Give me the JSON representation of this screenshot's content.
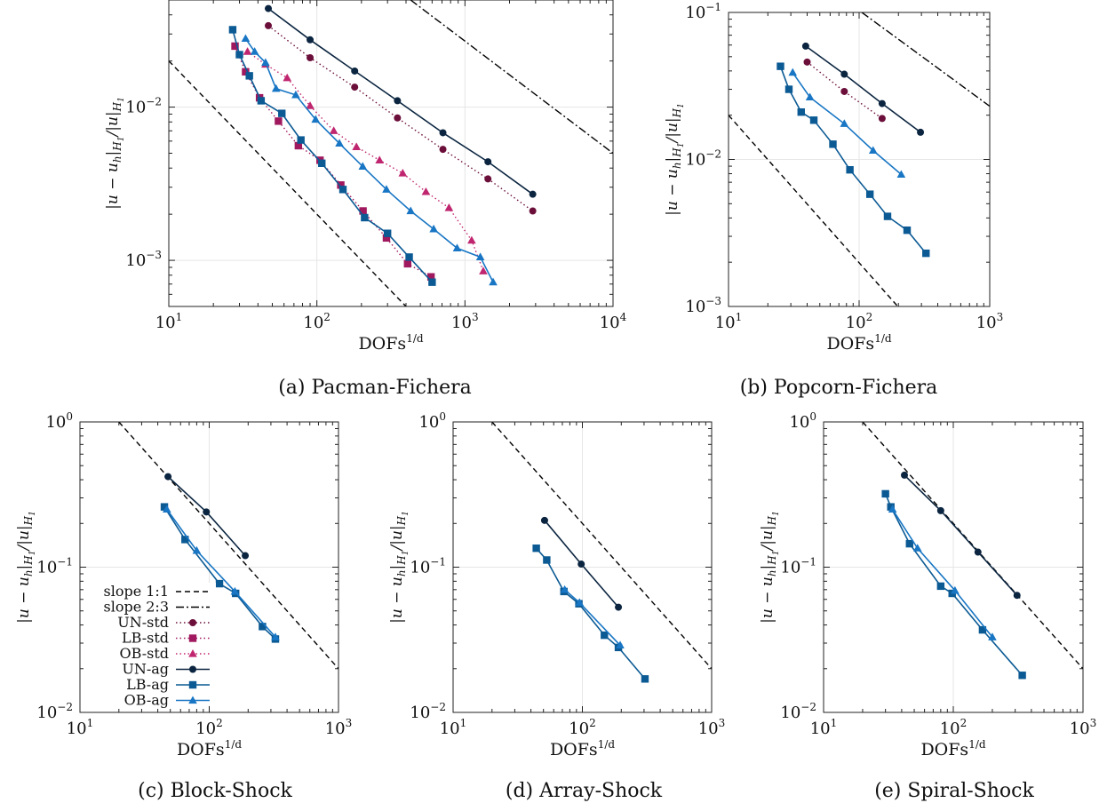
{
  "colors": {
    "UN": "#0b2540",
    "LB": "#0b5a94",
    "OB": "#1876c4",
    "UNstd": "#6b0f3a",
    "LBstd": "#a0185e",
    "OBstd": "#c0266f",
    "ref": "#000000"
  },
  "legend": {
    "entries": [
      {
        "label": "slope 1:1",
        "style": "dash",
        "marker": "none",
        "color": "#000000"
      },
      {
        "label": "slope 2:3",
        "style": "dashdot",
        "marker": "none",
        "color": "#000000"
      },
      {
        "label": "UN-std",
        "style": "dot",
        "marker": "circle",
        "color": "#6b0f3a"
      },
      {
        "label": "LB-std",
        "style": "dot",
        "marker": "square",
        "color": "#a0185e"
      },
      {
        "label": "OB-std",
        "style": "dot",
        "marker": "triangle",
        "color": "#c0266f"
      },
      {
        "label": "UN-ag",
        "style": "solid",
        "marker": "circle",
        "color": "#0b2540"
      },
      {
        "label": "LB-ag",
        "style": "solid",
        "marker": "square",
        "color": "#0b5a94"
      },
      {
        "label": "OB-ag",
        "style": "solid",
        "marker": "triangle",
        "color": "#1876c4"
      }
    ]
  },
  "chart_data": [
    {
      "type": "line",
      "caption": "(a) Pacman-Fichera",
      "xscale": "log",
      "yscale": "log",
      "xlim": [
        10,
        10000
      ],
      "ylim": [
        0.0005,
        0.05
      ],
      "xticks": [
        {
          "v": 10,
          "base": "10",
          "exp": "1"
        },
        {
          "v": 100,
          "base": "10",
          "exp": "2"
        },
        {
          "v": 1000,
          "base": "10",
          "exp": "3"
        },
        {
          "v": 10000,
          "base": "10",
          "exp": "4"
        }
      ],
      "yticks": [
        {
          "v": 0.001,
          "base": "10",
          "exp": "−3"
        },
        {
          "v": 0.01,
          "base": "10",
          "exp": "−2"
        }
      ],
      "xlabel": {
        "base": "DOFs",
        "exp": "1/d"
      },
      "ylabel": "|u − u_h|_H1 / |u|_H1",
      "series": [
        {
          "name": "slope 1:1",
          "style": "dash",
          "marker": "none",
          "color": "#000000",
          "x": [
            10,
            400
          ],
          "y": [
            0.02,
            0.0005
          ]
        },
        {
          "name": "slope 2:3",
          "style": "dashdot",
          "marker": "none",
          "color": "#000000",
          "x": [
            430,
            10000
          ],
          "y": [
            0.05,
            0.005
          ]
        },
        {
          "name": "UN-std",
          "style": "dot",
          "marker": "circle",
          "color": "#6b0f3a",
          "x": [
            47,
            90,
            180,
            350,
            710,
            1430,
            2870
          ],
          "y": [
            0.034,
            0.021,
            0.0135,
            0.0085,
            0.0053,
            0.0034,
            0.0021
          ]
        },
        {
          "name": "LB-std",
          "style": "dot",
          "marker": "square",
          "color": "#a0185e",
          "x": [
            28,
            33,
            41,
            55,
            75,
            105,
            145,
            205,
            295,
            410,
            590
          ],
          "y": [
            0.025,
            0.017,
            0.0115,
            0.0081,
            0.0056,
            0.0045,
            0.0031,
            0.0021,
            0.0014,
            0.00095,
            0.00078
          ]
        },
        {
          "name": "OB-std",
          "style": "dot",
          "marker": "triangle",
          "color": "#c0266f",
          "x": [
            34,
            45,
            63,
            90,
            130,
            185,
            265,
            380,
            545,
            780,
            1110,
            1330
          ],
          "y": [
            0.023,
            0.019,
            0.0155,
            0.0102,
            0.007,
            0.0055,
            0.0045,
            0.0037,
            0.0028,
            0.0022,
            0.00135,
            0.00085
          ]
        },
        {
          "name": "UN-ag",
          "style": "solid",
          "marker": "circle",
          "color": "#0b2540",
          "x": [
            47,
            90,
            180,
            350,
            710,
            1430,
            2870
          ],
          "y": [
            0.044,
            0.0275,
            0.0172,
            0.011,
            0.0068,
            0.0044,
            0.0027
          ]
        },
        {
          "name": "LB-ag",
          "style": "solid",
          "marker": "square",
          "color": "#0b5a94",
          "x": [
            27,
            30,
            35,
            42,
            58,
            78,
            108,
            150,
            210,
            300,
            420,
            600
          ],
          "y": [
            0.032,
            0.022,
            0.016,
            0.011,
            0.0091,
            0.0061,
            0.0043,
            0.0029,
            0.0019,
            0.0015,
            0.00105,
            0.00072
          ]
        },
        {
          "name": "OB-ag",
          "style": "solid",
          "marker": "triangle",
          "color": "#1876c4",
          "x": [
            33,
            38,
            45,
            53,
            72,
            98,
            142,
            204,
            295,
            430,
            615,
            885,
            1270,
            1550
          ],
          "y": [
            0.028,
            0.023,
            0.0195,
            0.0132,
            0.012,
            0.0083,
            0.0058,
            0.0041,
            0.0029,
            0.0021,
            0.0016,
            0.0012,
            0.00105,
            0.00072
          ]
        }
      ]
    },
    {
      "type": "line",
      "caption": "(b) Popcorn-Fichera",
      "xscale": "log",
      "yscale": "log",
      "xlim": [
        10,
        1000
      ],
      "ylim": [
        0.001,
        0.1
      ],
      "xticks": [
        {
          "v": 10,
          "base": "10",
          "exp": "1"
        },
        {
          "v": 100,
          "base": "10",
          "exp": "2"
        },
        {
          "v": 1000,
          "base": "10",
          "exp": "3"
        }
      ],
      "yticks": [
        {
          "v": 0.001,
          "base": "10",
          "exp": "−3"
        },
        {
          "v": 0.01,
          "base": "10",
          "exp": "−2"
        },
        {
          "v": 0.1,
          "base": "10",
          "exp": "−1"
        }
      ],
      "xlabel": {
        "base": "DOFs",
        "exp": "1/d"
      },
      "ylabel": "|u − u_h|_H1 / |u|_H1",
      "series": [
        {
          "name": "slope 1:1",
          "style": "dash",
          "marker": "none",
          "color": "#000000",
          "x": [
            10,
            220
          ],
          "y": [
            0.02,
            0.0009
          ]
        },
        {
          "name": "slope 2:3",
          "style": "dashdot",
          "marker": "none",
          "color": "#000000",
          "x": [
            105,
            1000
          ],
          "y": [
            0.1,
            0.023
          ]
        },
        {
          "name": "UN-std",
          "style": "dot",
          "marker": "circle",
          "color": "#6b0f3a",
          "x": [
            40,
            77,
            150
          ],
          "y": [
            0.046,
            0.029,
            0.019
          ]
        },
        {
          "name": "UN-ag",
          "style": "solid",
          "marker": "circle",
          "color": "#0b2540",
          "x": [
            39,
            77,
            150,
            295
          ],
          "y": [
            0.059,
            0.038,
            0.024,
            0.0153
          ]
        },
        {
          "name": "LB-ag",
          "style": "solid",
          "marker": "square",
          "color": "#0b5a94",
          "x": [
            25,
            29,
            36,
            45,
            63,
            85,
            121,
            165,
            233,
            325
          ],
          "y": [
            0.043,
            0.03,
            0.021,
            0.0185,
            0.0127,
            0.0085,
            0.0058,
            0.0041,
            0.0033,
            0.0023
          ]
        },
        {
          "name": "OB-ag",
          "style": "solid",
          "marker": "triangle",
          "color": "#1876c4",
          "x": [
            31,
            42,
            77,
            128,
            210
          ],
          "y": [
            0.039,
            0.0265,
            0.0175,
            0.0115,
            0.0079
          ]
        }
      ]
    },
    {
      "type": "line",
      "caption": "(c) Block-Shock",
      "xscale": "log",
      "yscale": "log",
      "xlim": [
        10,
        1000
      ],
      "ylim": [
        0.01,
        1
      ],
      "xticks": [
        {
          "v": 10,
          "base": "10",
          "exp": "1"
        },
        {
          "v": 100,
          "base": "10",
          "exp": "2"
        },
        {
          "v": 1000,
          "base": "10",
          "exp": "3"
        }
      ],
      "yticks": [
        {
          "v": 0.01,
          "base": "10",
          "exp": "−2"
        },
        {
          "v": 0.1,
          "base": "10",
          "exp": "−1"
        },
        {
          "v": 1,
          "base": "10",
          "exp": "0"
        }
      ],
      "xlabel": {
        "base": "DOFs",
        "exp": "1/d"
      },
      "ylabel": "|u − u_h|_H1 / |u|_H1",
      "legend": true,
      "series": [
        {
          "name": "slope 1:1",
          "style": "dash",
          "marker": "none",
          "color": "#000000",
          "x": [
            20,
            1000
          ],
          "y": [
            1,
            0.02
          ]
        },
        {
          "name": "UN-ag",
          "style": "solid",
          "marker": "circle",
          "color": "#0b2540",
          "x": [
            48,
            95,
            190
          ],
          "y": [
            0.42,
            0.24,
            0.12
          ]
        },
        {
          "name": "LB-ag",
          "style": "solid",
          "marker": "square",
          "color": "#0b5a94",
          "x": [
            45,
            65,
            120,
            160,
            258,
            325
          ],
          "y": [
            0.26,
            0.155,
            0.077,
            0.066,
            0.039,
            0.032
          ]
        },
        {
          "name": "OB-ag",
          "style": "solid",
          "marker": "triangle",
          "color": "#1876c4",
          "x": [
            47,
            80,
            158,
            325
          ],
          "y": [
            0.25,
            0.13,
            0.068,
            0.033
          ]
        }
      ]
    },
    {
      "type": "line",
      "caption": "(d) Array-Shock",
      "xscale": "log",
      "yscale": "log",
      "xlim": [
        10,
        1000
      ],
      "ylim": [
        0.01,
        1
      ],
      "xticks": [
        {
          "v": 10,
          "base": "10",
          "exp": "1"
        },
        {
          "v": 100,
          "base": "10",
          "exp": "2"
        },
        {
          "v": 1000,
          "base": "10",
          "exp": "3"
        }
      ],
      "yticks": [
        {
          "v": 0.01,
          "base": "10",
          "exp": "−2"
        },
        {
          "v": 0.1,
          "base": "10",
          "exp": "−1"
        },
        {
          "v": 1,
          "base": "10",
          "exp": "0"
        }
      ],
      "xlabel": {
        "base": "DOFs",
        "exp": "1/d"
      },
      "ylabel": "|u − u_h|_H1 / |u|_H1",
      "series": [
        {
          "name": "slope 1:1",
          "style": "dash",
          "marker": "none",
          "color": "#000000",
          "x": [
            20,
            1000
          ],
          "y": [
            1,
            0.02
          ]
        },
        {
          "name": "UN-ag",
          "style": "solid",
          "marker": "circle",
          "color": "#0b2540",
          "x": [
            51,
            98,
            190
          ],
          "y": [
            0.21,
            0.105,
            0.053
          ]
        },
        {
          "name": "LB-ag",
          "style": "solid",
          "marker": "square",
          "color": "#0b5a94",
          "x": [
            44,
            53,
            72,
            94,
            148,
            190,
            305
          ],
          "y": [
            0.135,
            0.112,
            0.068,
            0.056,
            0.034,
            0.028,
            0.017
          ]
        },
        {
          "name": "OB-ag",
          "style": "solid",
          "marker": "triangle",
          "color": "#1876c4",
          "x": [
            73,
            95,
            196
          ],
          "y": [
            0.07,
            0.057,
            0.029
          ]
        }
      ]
    },
    {
      "type": "line",
      "caption": "(e) Spiral-Shock",
      "xscale": "log",
      "yscale": "log",
      "xlim": [
        10,
        1000
      ],
      "ylim": [
        0.01,
        1
      ],
      "xticks": [
        {
          "v": 10,
          "base": "10",
          "exp": "1"
        },
        {
          "v": 100,
          "base": "10",
          "exp": "2"
        },
        {
          "v": 1000,
          "base": "10",
          "exp": "3"
        }
      ],
      "yticks": [
        {
          "v": 0.01,
          "base": "10",
          "exp": "−2"
        },
        {
          "v": 0.1,
          "base": "10",
          "exp": "−1"
        },
        {
          "v": 1,
          "base": "10",
          "exp": "0"
        }
      ],
      "xlabel": {
        "base": "DOFs",
        "exp": "1/d"
      },
      "ylabel": "|u − u_h|_H1 / |u|_H1",
      "series": [
        {
          "name": "slope 1:1",
          "style": "dash",
          "marker": "none",
          "color": "#000000",
          "x": [
            20,
            1000
          ],
          "y": [
            1,
            0.02
          ]
        },
        {
          "name": "UN-ag",
          "style": "solid",
          "marker": "circle",
          "color": "#0b2540",
          "x": [
            42,
            80,
            155,
            310
          ],
          "y": [
            0.43,
            0.245,
            0.127,
            0.064
          ]
        },
        {
          "name": "LB-ag",
          "style": "solid",
          "marker": "square",
          "color": "#0b5a94",
          "x": [
            30,
            33,
            46,
            80,
            98,
            168,
            340
          ],
          "y": [
            0.32,
            0.26,
            0.145,
            0.074,
            0.066,
            0.037,
            0.018
          ]
        },
        {
          "name": "OB-ag",
          "style": "solid",
          "marker": "triangle",
          "color": "#1876c4",
          "x": [
            34,
            53,
            103,
            200
          ],
          "y": [
            0.25,
            0.135,
            0.069,
            0.033
          ]
        }
      ]
    }
  ]
}
